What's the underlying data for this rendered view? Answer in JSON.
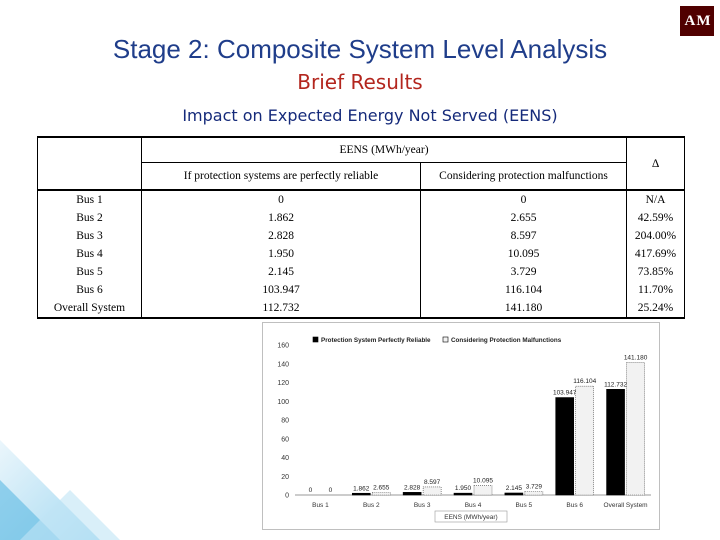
{
  "slide": {
    "title": "Stage 2: Composite System Level Analysis",
    "subtitle": "Brief Results",
    "section_heading": "Impact on Expected Energy Not Served (EENS)",
    "logo_icon": "texas-am-logo"
  },
  "table": {
    "group_header": "EENS (MWh/year)",
    "col1_header": "If protection systems are perfectly reliable",
    "col2_header": "Considering protection malfunctions",
    "delta_header": "∆",
    "rows": [
      {
        "bus": "Bus 1",
        "reliable": "0",
        "malfunction": "0",
        "delta": "N/A"
      },
      {
        "bus": "Bus 2",
        "reliable": "1.862",
        "malfunction": "2.655",
        "delta": "42.59%"
      },
      {
        "bus": "Bus 3",
        "reliable": "2.828",
        "malfunction": "8.597",
        "delta": "204.00%"
      },
      {
        "bus": "Bus 4",
        "reliable": "1.950",
        "malfunction": "10.095",
        "delta": "417.69%"
      },
      {
        "bus": "Bus 5",
        "reliable": "2.145",
        "malfunction": "3.729",
        "delta": "73.85%"
      },
      {
        "bus": "Bus 6",
        "reliable": "103.947",
        "malfunction": "116.104",
        "delta": "11.70%"
      },
      {
        "bus": "Overall System",
        "reliable": "112.732",
        "malfunction": "141.180",
        "delta": "25.24%"
      }
    ]
  },
  "chart_data": {
    "type": "bar",
    "categories": [
      "Bus 1",
      "Bus 2",
      "Bus 3",
      "Bus 4",
      "Bus 5",
      "Bus 6",
      "Overall System"
    ],
    "series": [
      {
        "name": "Protection System Perfectly Reliable",
        "values": [
          0,
          1.862,
          2.828,
          1.95,
          2.145,
          103.947,
          112.732
        ],
        "labels": [
          "0",
          "1.862",
          "2.828",
          "1.950",
          "2.145",
          "103.947",
          "112.732"
        ],
        "color": "#000000"
      },
      {
        "name": "Considering Protection Malfunctions",
        "values": [
          0,
          2.655,
          8.597,
          10.095,
          3.729,
          116.104,
          141.18
        ],
        "labels": [
          "0",
          "2.655",
          "8.597",
          "10.095",
          "3.729",
          "116.104",
          "141.180"
        ],
        "color": "#f2f2f2"
      }
    ],
    "ylim": [
      0,
      160
    ],
    "yticks": [
      "0",
      "20",
      "40",
      "60",
      "80",
      "100",
      "120",
      "140",
      "160"
    ],
    "xlabel": "EENS (MWh/year)",
    "ylabel": "",
    "grid": false,
    "legend": "top"
  }
}
